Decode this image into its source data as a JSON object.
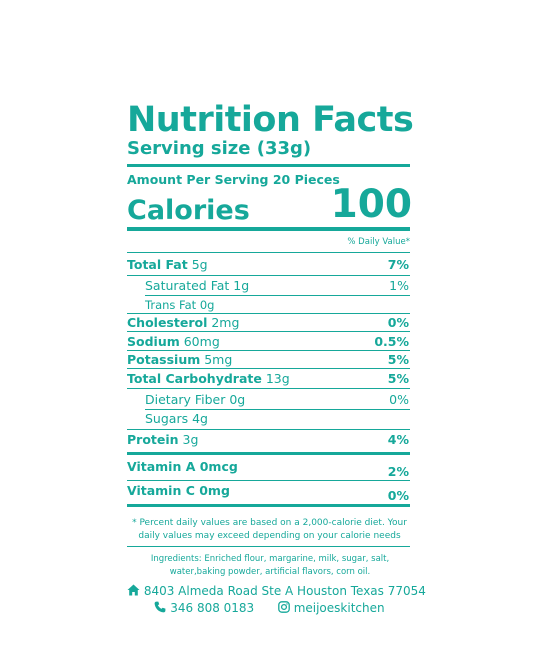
{
  "label": {
    "title": "Nutrition Facts",
    "serving_size": "Serving size (33g)",
    "amount_per_serving": "Amount Per Serving 20 Pieces",
    "calories_label": "Calories",
    "calories_value": "100",
    "daily_value_header": "% Daily Value*"
  },
  "nutrients": {
    "total_fat": {
      "name": "Total Fat",
      "amount": "5g",
      "dv": "7%"
    },
    "saturated_fat": {
      "name": "Saturated Fat 1g",
      "dv": "1%"
    },
    "trans_fat": {
      "name": "Trans Fat 0g"
    },
    "cholesterol": {
      "name": "Cholesterol",
      "amount": "2mg",
      "dv": "0%"
    },
    "sodium": {
      "name": "Sodium",
      "amount": "60mg",
      "dv": "0.5%"
    },
    "potassium": {
      "name": "Potassium",
      "amount": "5mg",
      "dv": "5%"
    },
    "total_carbohydrate": {
      "name": "Total Carbohydrate",
      "amount": "13g",
      "dv": "5%"
    },
    "dietary_fiber": {
      "name": "Dietary Fiber 0g",
      "dv": "0%"
    },
    "sugars": {
      "name": "Sugars 4g"
    },
    "protein": {
      "name": "Protein",
      "amount": "3g",
      "dv": "4%"
    },
    "vitamin_a": {
      "name": "Vitamin A 0mcg",
      "dv": "2%"
    },
    "vitamin_c": {
      "name": "Vitamin C 0mg",
      "dv": "0%"
    }
  },
  "footnote": {
    "line1": "* Percent daily values are based on a 2,000-calorie diet. Your",
    "line2": "daily values may exceed depending on your calorie needs"
  },
  "ingredients": {
    "line1": "Ingredients:  Enriched flour, margarine, milk, sugar, salt,",
    "line2": "water,baking powder, artificial flavors, corn oil."
  },
  "contact": {
    "address": "8403 Almeda Road Ste A Houston Texas 77054",
    "phone": "346 808 0183",
    "instagram": "meijoeskitchen"
  },
  "icons": {
    "address": "home-icon",
    "phone": "phone-icon",
    "instagram": "instagram-icon"
  },
  "colors": {
    "accent": "#16a89a",
    "background": "#ffffff"
  }
}
